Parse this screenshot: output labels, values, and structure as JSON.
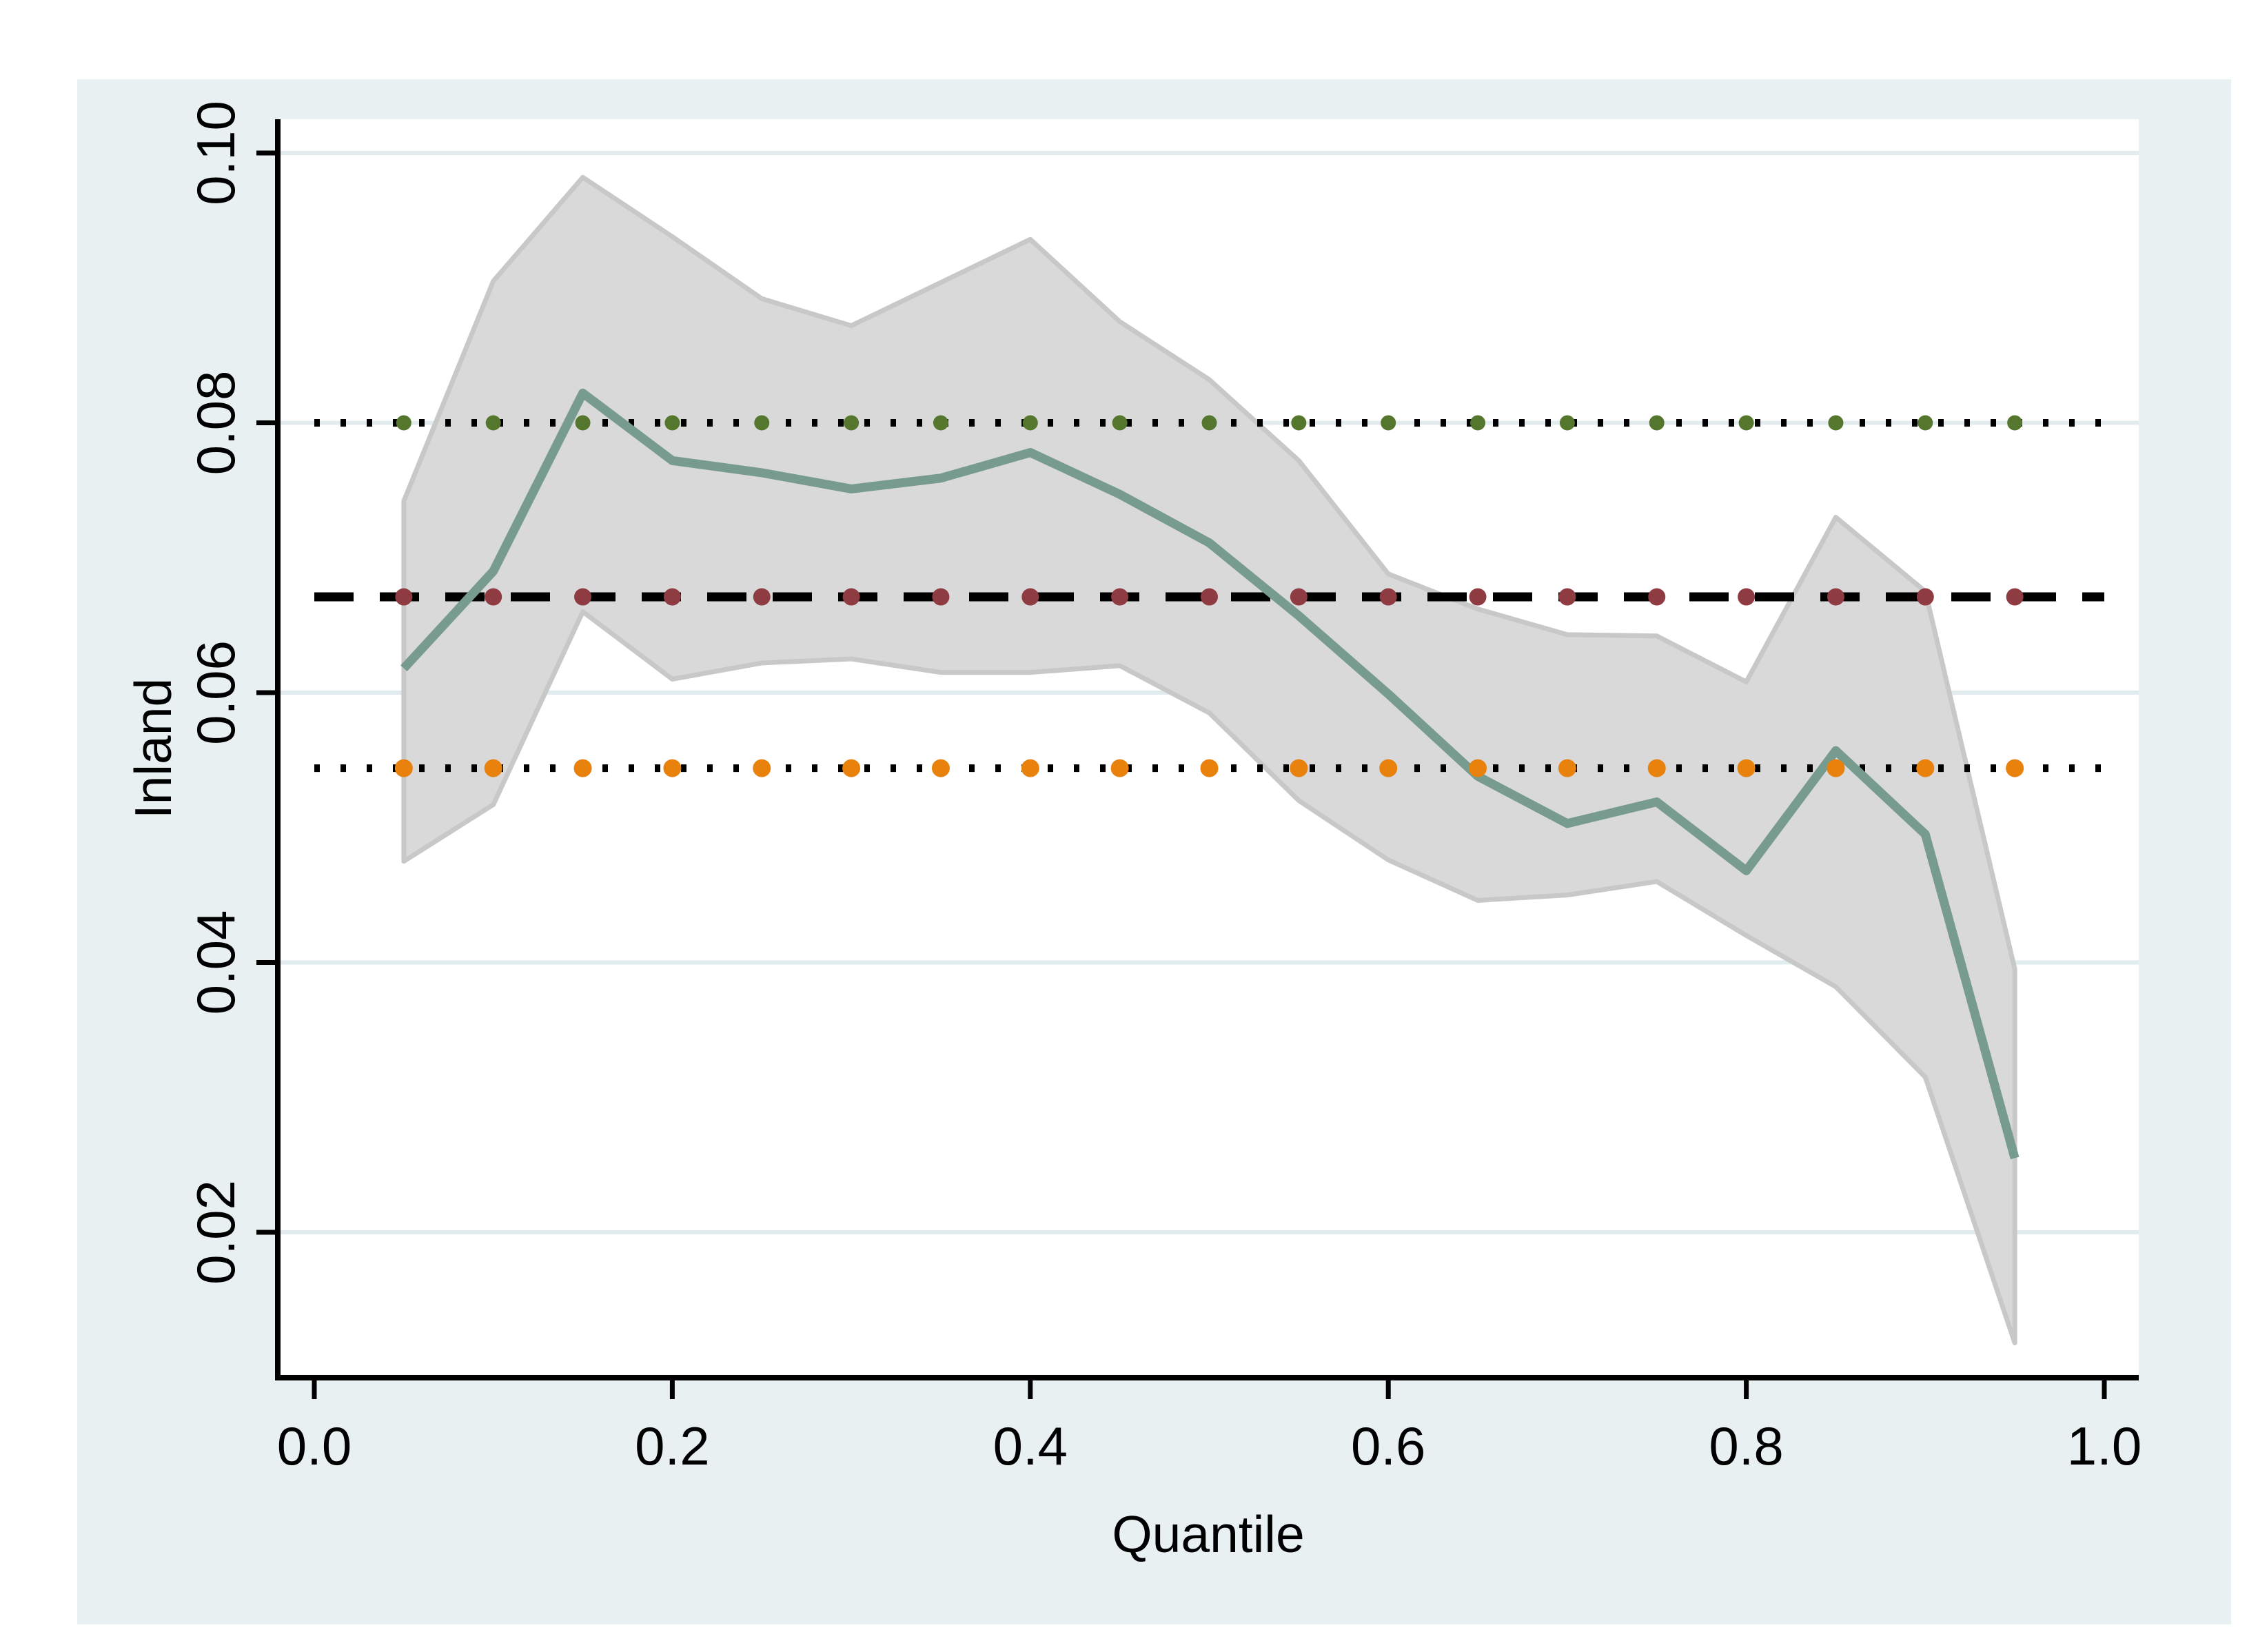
{
  "figure": {
    "kind": "stata-quantile-regression-plot",
    "colors": {
      "page_background": "#ffffff",
      "panel_background": "#e9f0f2",
      "plot_background": "#ffffff",
      "gridline": "#e2ecef",
      "axis": "#000000",
      "confidence_band_fill": "#d9d9d9",
      "confidence_band_edge": "#c8c8c8",
      "coefficient_line": "#789b8f",
      "ols_line": "#000000",
      "ols_marker": "#8f3b42",
      "ols_ci_upper_marker": "#55772d",
      "ols_ci_lower_marker": "#e9810d"
    }
  },
  "chart_data": {
    "type": "line",
    "title": "",
    "xlabel": "Quantile",
    "ylabel": "Inland",
    "x_tick_values": [
      0.0,
      0.2,
      0.4,
      0.6,
      0.8,
      1.0
    ],
    "x_tick_labels": [
      "0.0",
      "0.2",
      "0.4",
      "0.6",
      "0.8",
      "1.0"
    ],
    "y_tick_values": [
      0.02,
      0.04,
      0.06,
      0.08,
      0.1
    ],
    "y_tick_labels": [
      "0.02",
      "0.04",
      "0.06",
      "0.08",
      "0.10"
    ],
    "xlim": [
      -0.0204,
      1.0193
    ],
    "ylim": [
      0.0092,
      0.1025
    ],
    "grid": "horizontal",
    "legend": "none",
    "quantiles": [
      0.05,
      0.1,
      0.15,
      0.2,
      0.25,
      0.3,
      0.35,
      0.4,
      0.45,
      0.5,
      0.55,
      0.6,
      0.65,
      0.7,
      0.75,
      0.8,
      0.85,
      0.9,
      0.95
    ],
    "series": [
      {
        "name": "quantile-regression-coefficient",
        "type": "line",
        "color": "#789b8f",
        "values": [
          0.0618,
          0.069,
          0.0822,
          0.0772,
          0.0763,
          0.0751,
          0.0759,
          0.0778,
          0.0747,
          0.0711,
          0.0657,
          0.0599,
          0.0538,
          0.0503,
          0.0519,
          0.0468,
          0.0557,
          0.0495,
          0.0255
        ]
      },
      {
        "name": "confidence-band-upper",
        "type": "area-boundary",
        "color": "#d9d9d9",
        "values": [
          0.0742,
          0.0905,
          0.0982,
          0.0938,
          0.0892,
          0.0872,
          0.0904,
          0.0936,
          0.0875,
          0.0832,
          0.0772,
          0.0688,
          0.0662,
          0.0643,
          0.0642,
          0.0608,
          0.073,
          0.0675,
          0.0395
        ]
      },
      {
        "name": "confidence-band-lower",
        "type": "area-boundary",
        "color": "#d9d9d9",
        "values": [
          0.0475,
          0.0517,
          0.066,
          0.061,
          0.0622,
          0.0625,
          0.0615,
          0.0615,
          0.062,
          0.0585,
          0.052,
          0.0476,
          0.0446,
          0.045,
          0.046,
          0.042,
          0.0382,
          0.0315,
          0.0118
        ]
      }
    ],
    "reference_lines": [
      {
        "name": "ols-coefficient",
        "value": 0.0671,
        "line_style": "dashed",
        "line_color": "#000000",
        "marker_color": "#8f3b42",
        "marker_radius": 12.5
      },
      {
        "name": "ols-ci-upper",
        "value": 0.08,
        "line_style": "dotted",
        "line_color": "#000000",
        "marker_color": "#55772d",
        "marker_radius": 11
      },
      {
        "name": "ols-ci-lower",
        "value": 0.0544,
        "line_style": "dotted",
        "line_color": "#000000",
        "marker_color": "#e9810d",
        "marker_radius": 13
      }
    ]
  }
}
